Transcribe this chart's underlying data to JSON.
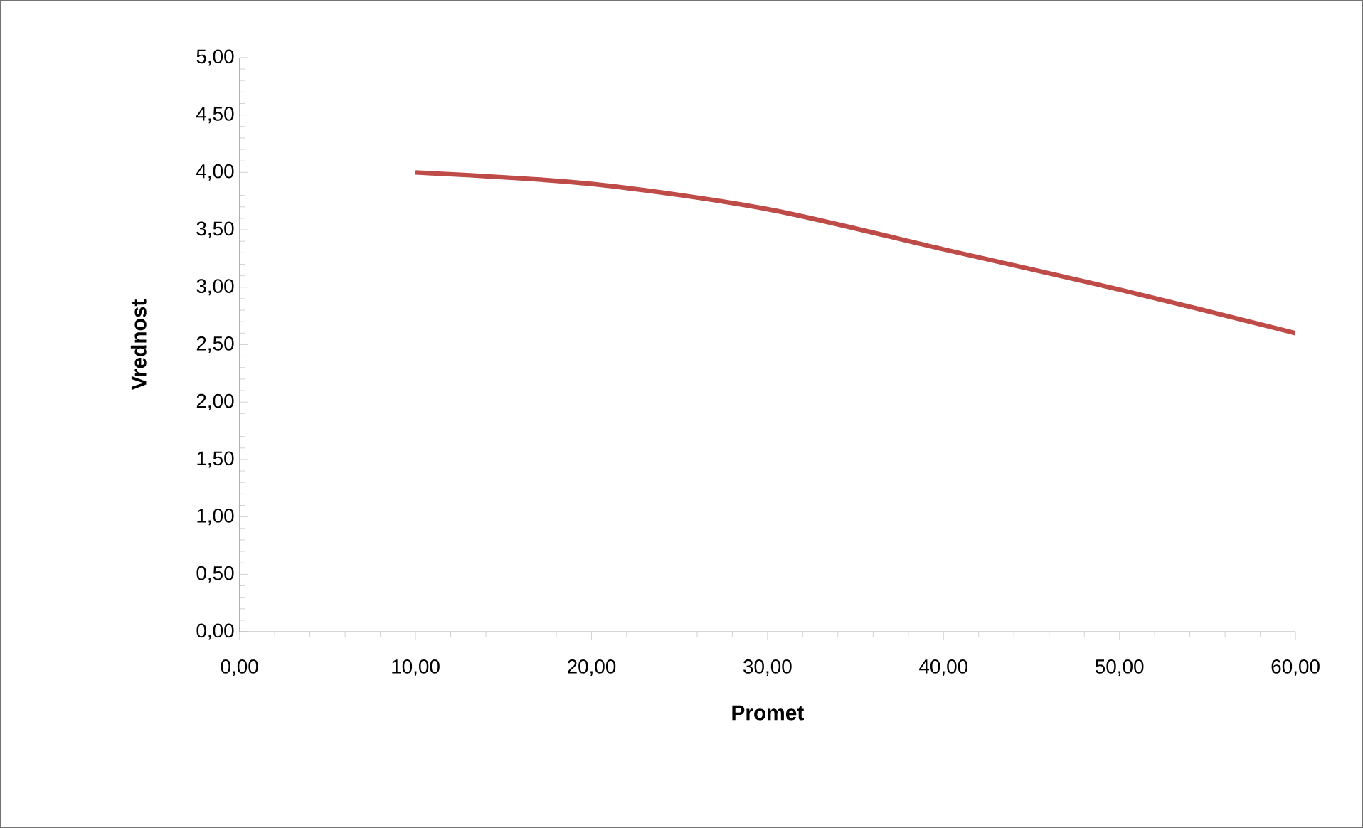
{
  "chart_data": {
    "type": "line",
    "xlabel": "Promet",
    "ylabel": "Vrednost",
    "x": [
      10,
      20,
      30,
      40,
      50,
      60
    ],
    "series": [
      {
        "color": "#be4b48",
        "values": [
          4.0,
          3.9,
          3.68,
          3.33,
          2.98,
          2.6
        ]
      }
    ],
    "xlim": [
      0,
      60
    ],
    "xticks": [
      {
        "value": 0,
        "label": "0,00"
      },
      {
        "value": 10,
        "label": "10,00"
      },
      {
        "value": 20,
        "label": "20,00"
      },
      {
        "value": 30,
        "label": "30,00"
      },
      {
        "value": 40,
        "label": "40,00"
      },
      {
        "value": 50,
        "label": "50,00"
      },
      {
        "value": 60,
        "label": "60,00"
      }
    ],
    "ylim": [
      0,
      5
    ],
    "yticks": [
      {
        "value": 0,
        "label": "0,00"
      },
      {
        "value": 0.5,
        "label": "0,50"
      },
      {
        "value": 1,
        "label": "1,00"
      },
      {
        "value": 1.5,
        "label": "1,50"
      },
      {
        "value": 2,
        "label": "2,00"
      },
      {
        "value": 2.5,
        "label": "2,50"
      },
      {
        "value": 3,
        "label": "3,00"
      },
      {
        "value": 3.5,
        "label": "3,50"
      },
      {
        "value": 4,
        "label": "4,00"
      },
      {
        "value": 4.5,
        "label": "4,50"
      },
      {
        "value": 5,
        "label": "5,00"
      }
    ],
    "marker": "none",
    "line_style": "solid"
  }
}
